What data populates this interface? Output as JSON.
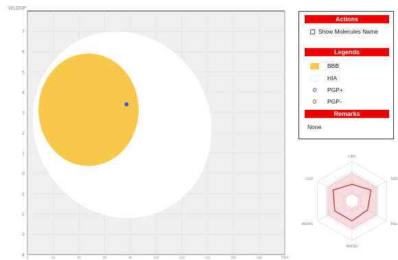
{
  "egg_plot": {
    "ylabel": "WLOGP",
    "ylim": [
      -4,
      8
    ],
    "xlim": [
      0,
      200
    ],
    "y_ticks": [
      "-4",
      "-3",
      "-2",
      "-1",
      "0",
      "1",
      "2",
      "3",
      "4",
      "5",
      "6",
      "7"
    ],
    "x_ticks": [
      "0",
      "20",
      "40",
      "60",
      "80",
      "100",
      "120",
      "140",
      "160",
      "180",
      "200"
    ],
    "x_tick_display": [
      "0",
      "20",
      "40",
      "60",
      "80",
      "100",
      "120",
      "140",
      "160",
      "180",
      "TPSA"
    ],
    "molecule": {
      "x": 77,
      "y": 3.4,
      "color": "#4455cc"
    },
    "colors": {
      "background": "#efefef",
      "bbb": "#f7c84a",
      "hia": "#ffffff"
    }
  },
  "actions": {
    "title": "Actions",
    "show_molecules_label": "Show Molecules Name"
  },
  "legends": {
    "title": "Legends",
    "items": [
      {
        "label": "BBB",
        "color": "#f7c84a"
      },
      {
        "label": "HIA",
        "color": "#ffffff"
      },
      {
        "label": "PGP+",
        "color": "#3344dd"
      },
      {
        "label": "PGP-",
        "color": "#dd3322"
      }
    ]
  },
  "remarks": {
    "title": "Remarks",
    "text": "None"
  },
  "radar": {
    "axes": [
      "LIPO",
      "SIZE",
      "POLAR",
      "INSOLU",
      "INSATU",
      "FLEX"
    ],
    "values": [
      0.42,
      0.55,
      0.45,
      0.5,
      0.5,
      0.55
    ],
    "colors": {
      "range": "#f3c6cc",
      "line": "#cc2222"
    }
  }
}
